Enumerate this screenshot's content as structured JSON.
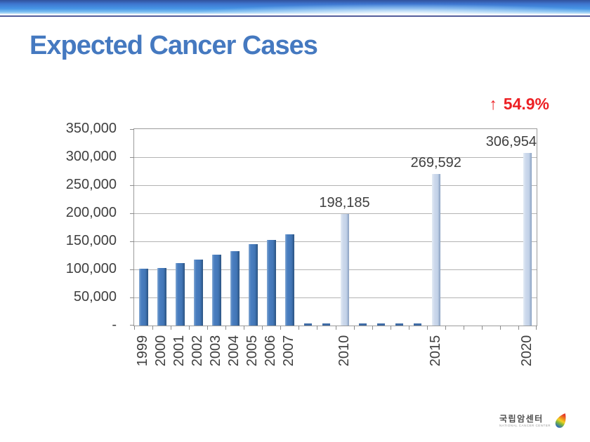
{
  "slide": {
    "title": "Expected Cancer Cases"
  },
  "annotation": {
    "arrow": "↑",
    "value": "54.9%",
    "color": "#ed2024"
  },
  "colors": {
    "title_blue": "#4579c0",
    "bar_dark_blue": "#4a7ec0",
    "bar_light_blue": "#c2d2e8",
    "annotation_red": "#ed2024"
  },
  "logo": {
    "korean": "국립암센터",
    "english": "NATIONAL CANCER CENTER"
  },
  "chart_data": {
    "type": "bar",
    "title": "Expected Cancer Cases",
    "xlabel": "",
    "ylabel": "",
    "ylim": [
      0,
      350000
    ],
    "ytick_step": 50000,
    "ytick_labels": [
      "350,000",
      "300,000",
      "250,000",
      "200,000",
      "150,000",
      "100,000",
      "50,000",
      "-"
    ],
    "grid": true,
    "legend": "none",
    "x_range": [
      1999,
      2020
    ],
    "x_tick_labels": [
      "1999",
      "2000",
      "2001",
      "2002",
      "2003",
      "2004",
      "2005",
      "2006",
      "2007",
      "2010",
      "2015",
      "2020"
    ],
    "series": [
      {
        "name": "dark_blue_bars_1999_2007",
        "color": "#4a7ec0",
        "points": [
          {
            "year": 1999,
            "value": 101000
          },
          {
            "year": 2000,
            "value": 102000
          },
          {
            "year": 2001,
            "value": 111000
          },
          {
            "year": 2002,
            "value": 117000
          },
          {
            "year": 2003,
            "value": 126000
          },
          {
            "year": 2004,
            "value": 133000
          },
          {
            "year": 2005,
            "value": 145000
          },
          {
            "year": 2006,
            "value": 153000
          },
          {
            "year": 2007,
            "value": 162000
          }
        ]
      },
      {
        "name": "light_blue_bars_projected",
        "color": "#c2d2e8",
        "points": [
          {
            "year": 2010,
            "value": 198185,
            "label": "198,185"
          },
          {
            "year": 2015,
            "value": 269592,
            "label": "269,592"
          },
          {
            "year": 2020,
            "value": 306954,
            "label": "306,954"
          }
        ]
      }
    ],
    "baseline_stub_years": [
      2008,
      2009,
      2011,
      2012,
      2013,
      2014
    ],
    "annotation_text": "↑ 54.9%"
  }
}
